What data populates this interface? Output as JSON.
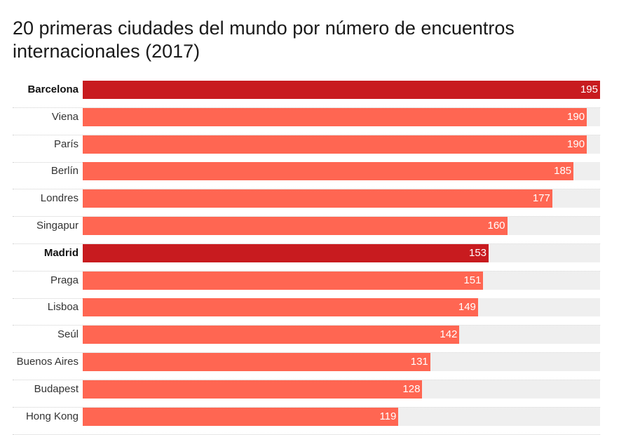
{
  "title": "20 primeras ciudades del mundo por número de encuentros internacionales (2017)",
  "colors": {
    "bar": "#ff6652",
    "highlight": "#c81b1f",
    "track": "#efefef"
  },
  "chart_data": {
    "type": "bar",
    "orientation": "horizontal",
    "title": "20 primeras ciudades del mundo por número de encuentros internacionales (2017)",
    "xlabel": "",
    "ylabel": "",
    "xlim": [
      0,
      195
    ],
    "grid": false,
    "categories": [
      "Barcelona",
      "Viena",
      "París",
      "Berlín",
      "Londres",
      "Singapur",
      "Madrid",
      "Praga",
      "Lisboa",
      "Seúl",
      "Buenos Aires",
      "Budapest",
      "Hong Kong"
    ],
    "values": [
      195,
      190,
      190,
      185,
      177,
      160,
      153,
      151,
      149,
      142,
      131,
      128,
      119
    ],
    "highlighted": [
      "Barcelona",
      "Madrid"
    ]
  }
}
